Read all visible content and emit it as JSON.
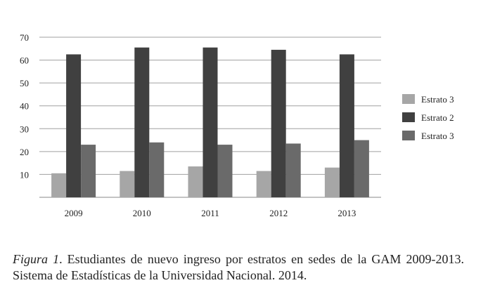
{
  "chart_data": {
    "type": "bar",
    "categories": [
      "2009",
      "2010",
      "2011",
      "2012",
      "2013"
    ],
    "series": [
      {
        "name": "Estrato 3",
        "values": [
          10.5,
          11.5,
          13.5,
          11.5,
          13
        ],
        "color": "#a6a6a6"
      },
      {
        "name": "Estrato 2",
        "values": [
          62.5,
          65.5,
          65.5,
          64.5,
          62.5
        ],
        "color": "#404040"
      },
      {
        "name": "Estrato 3",
        "values": [
          23,
          24,
          23,
          23.5,
          25
        ],
        "color": "#6a6a6a"
      }
    ],
    "yticks": [
      10,
      20,
      30,
      40,
      50,
      60,
      70
    ],
    "ylim": [
      0,
      70
    ],
    "grid": true,
    "legend": "right"
  },
  "caption": {
    "figure_label": "Figura 1",
    "text": ". Estudiantes de nuevo ingreso por estratos en sedes de la GAM 2009-2013. Sistema de Estadísticas de la Universidad Nacional. 2014."
  }
}
